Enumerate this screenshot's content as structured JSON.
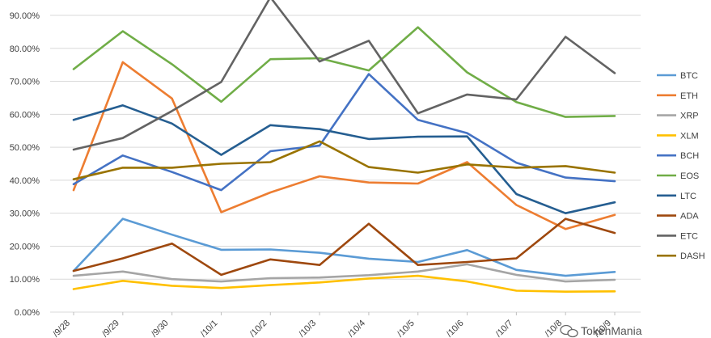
{
  "chart_data": {
    "type": "line",
    "title": "",
    "xlabel": "",
    "ylabel": "",
    "ylim": [
      0,
      0.95
    ],
    "ytick_values": [
      0,
      0.1,
      0.2,
      0.3,
      0.4,
      0.5,
      0.6,
      0.7,
      0.8,
      0.9
    ],
    "ytick_labels": [
      "0.00%",
      "10.00%",
      "20.00%",
      "30.00%",
      "40.00%",
      "50.00%",
      "60.00%",
      "70.00%",
      "80.00%",
      "90.00%"
    ],
    "categories": [
      "9/28",
      "9/29",
      "9/30",
      "10/1",
      "10/2",
      "10/3",
      "10/4",
      "10/5",
      "10/6",
      "10/7",
      "10/8",
      "10/9"
    ],
    "category_labels": [
      "/9/28",
      "/9/29",
      "/9/30",
      "/10/1",
      "/10/2",
      "/10/3",
      "/10/4",
      "/10/5",
      "/10/6",
      "/10/7",
      "/10/8",
      "/10/9"
    ],
    "legend_position": "right",
    "grid": "horizontal",
    "series": [
      {
        "name": "BTC",
        "color": "#5B9BD5",
        "values": [
          0.125,
          0.283,
          0.235,
          0.189,
          0.19,
          0.18,
          0.162,
          0.152,
          0.188,
          0.128,
          0.11,
          0.122
        ]
      },
      {
        "name": "ETH",
        "color": "#ED7D31",
        "values": [
          0.37,
          0.758,
          0.648,
          0.303,
          0.363,
          0.412,
          0.393,
          0.39,
          0.455,
          0.325,
          0.252,
          0.295
        ]
      },
      {
        "name": "XRP",
        "color": "#A5A5A5",
        "values": [
          0.11,
          0.123,
          0.1,
          0.093,
          0.103,
          0.105,
          0.112,
          0.123,
          0.145,
          0.113,
          0.093,
          0.098
        ]
      },
      {
        "name": "XLM",
        "color": "#FFC000",
        "values": [
          0.07,
          0.095,
          0.08,
          0.073,
          0.082,
          0.09,
          0.102,
          0.11,
          0.093,
          0.065,
          0.062,
          0.063
        ]
      },
      {
        "name": "BCH",
        "color": "#4472C4",
        "values": [
          0.388,
          0.475,
          0.425,
          0.37,
          0.488,
          0.505,
          0.722,
          0.583,
          0.543,
          0.453,
          0.408,
          0.397
        ]
      },
      {
        "name": "EOS",
        "color": "#70AD47",
        "values": [
          0.737,
          0.852,
          0.752,
          0.638,
          0.767,
          0.77,
          0.733,
          0.864,
          0.727,
          0.637,
          0.592,
          0.595
        ]
      },
      {
        "name": "LTC",
        "color": "#255E91",
        "values": [
          0.583,
          0.627,
          0.572,
          0.477,
          0.567,
          0.555,
          0.525,
          0.532,
          0.533,
          0.358,
          0.3,
          0.333
        ]
      },
      {
        "name": "ADA",
        "color": "#9E480E",
        "values": [
          0.125,
          0.163,
          0.208,
          0.113,
          0.16,
          0.143,
          0.268,
          0.143,
          0.152,
          0.163,
          0.283,
          0.24
        ]
      },
      {
        "name": "ETC",
        "color": "#636363",
        "values": [
          0.493,
          0.528,
          0.61,
          0.698,
          0.955,
          0.76,
          0.823,
          0.603,
          0.66,
          0.645,
          0.835,
          0.725
        ]
      },
      {
        "name": "DASH",
        "color": "#997300",
        "values": [
          0.403,
          0.438,
          0.438,
          0.45,
          0.455,
          0.518,
          0.44,
          0.423,
          0.448,
          0.438,
          0.443,
          0.423
        ]
      }
    ]
  },
  "watermark": {
    "text": "TokenMania"
  }
}
